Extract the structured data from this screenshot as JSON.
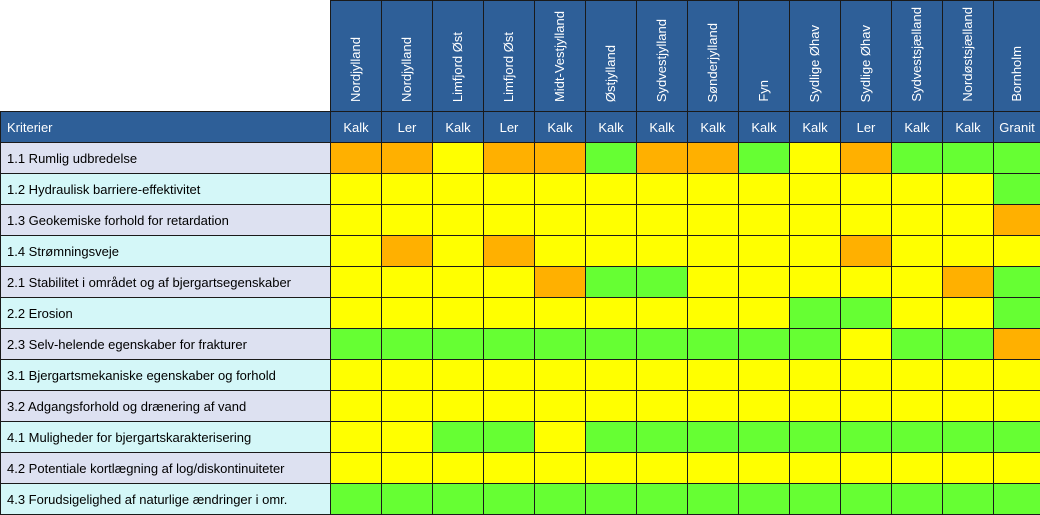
{
  "criteria_header": "Kriterier",
  "colors": {
    "y": "#ffff00",
    "g": "#66ff33",
    "o": "#ffb000"
  },
  "columns": [
    {
      "region": "Nordjylland",
      "rock": "Kalk"
    },
    {
      "region": "Nordjylland",
      "rock": "Ler"
    },
    {
      "region": "Limfjord Øst",
      "rock": "Kalk"
    },
    {
      "region": "Limfjord Øst",
      "rock": "Ler"
    },
    {
      "region": "Midt-Vestjylland",
      "rock": "Kalk"
    },
    {
      "region": "Østjylland",
      "rock": "Kalk"
    },
    {
      "region": "Sydvestjylland",
      "rock": "Kalk"
    },
    {
      "region": "Sønderjylland",
      "rock": "Kalk"
    },
    {
      "region": "Fyn",
      "rock": "Kalk"
    },
    {
      "region": "Sydlige Øhav",
      "rock": "Kalk"
    },
    {
      "region": "Sydlige Øhav",
      "rock": "Ler"
    },
    {
      "region": "Sydvestsjælland",
      "rock": "Kalk"
    },
    {
      "region": "Nordøstsjælland",
      "rock": "Kalk"
    },
    {
      "region": "Bornholm",
      "rock": "Granit"
    }
  ],
  "rows": [
    {
      "label": "1.1 Rumlig udbredelse",
      "cells": [
        "o",
        "o",
        "y",
        "o",
        "o",
        "g",
        "o",
        "o",
        "g",
        "y",
        "o",
        "g",
        "g",
        "g"
      ]
    },
    {
      "label": "1.2 Hydraulisk barriere-effektivitet",
      "cells": [
        "y",
        "y",
        "y",
        "y",
        "y",
        "y",
        "y",
        "y",
        "y",
        "y",
        "y",
        "y",
        "y",
        "g"
      ]
    },
    {
      "label": "1.3 Geokemiske forhold for retardation",
      "cells": [
        "y",
        "y",
        "y",
        "y",
        "y",
        "y",
        "y",
        "y",
        "y",
        "y",
        "y",
        "y",
        "y",
        "o"
      ]
    },
    {
      "label": "1.4 Strømningsveje",
      "cells": [
        "y",
        "o",
        "y",
        "o",
        "y",
        "y",
        "y",
        "y",
        "y",
        "y",
        "o",
        "y",
        "y",
        "y"
      ]
    },
    {
      "label": "2.1 Stabilitet i området og af bjergartsegenskaber",
      "cells": [
        "y",
        "y",
        "y",
        "y",
        "o",
        "g",
        "g",
        "y",
        "y",
        "y",
        "y",
        "y",
        "o",
        "g"
      ]
    },
    {
      "label": "2.2 Erosion",
      "cells": [
        "y",
        "y",
        "y",
        "y",
        "y",
        "y",
        "y",
        "y",
        "y",
        "g",
        "g",
        "y",
        "y",
        "g"
      ]
    },
    {
      "label": "2.3 Selv-helende egenskaber for frakturer",
      "cells": [
        "g",
        "g",
        "g",
        "g",
        "g",
        "g",
        "g",
        "g",
        "g",
        "g",
        "y",
        "g",
        "g",
        "o"
      ]
    },
    {
      "label": "3.1 Bjergartsmekaniske egenskaber og forhold",
      "cells": [
        "y",
        "y",
        "y",
        "y",
        "y",
        "y",
        "y",
        "y",
        "y",
        "y",
        "y",
        "y",
        "y",
        "y"
      ]
    },
    {
      "label": "3.2 Adgangsforhold og drænering af vand",
      "cells": [
        "y",
        "y",
        "y",
        "y",
        "y",
        "y",
        "y",
        "y",
        "y",
        "y",
        "y",
        "y",
        "y",
        "y"
      ]
    },
    {
      "label": "4.1 Muligheder for bjergartskarakterisering",
      "cells": [
        "y",
        "y",
        "g",
        "g",
        "y",
        "g",
        "g",
        "g",
        "g",
        "g",
        "g",
        "g",
        "g",
        "g"
      ]
    },
    {
      "label": "4.2 Potentiale kortlægning af log/diskontinuiteter",
      "cells": [
        "y",
        "y",
        "y",
        "y",
        "y",
        "y",
        "y",
        "y",
        "y",
        "y",
        "y",
        "y",
        "y",
        "y"
      ]
    },
    {
      "label": "4.3 Forudsigelighed af naturlige ændringer i omr.",
      "cells": [
        "g",
        "g",
        "g",
        "g",
        "g",
        "g",
        "g",
        "g",
        "g",
        "g",
        "g",
        "g",
        "g",
        "g"
      ]
    }
  ]
}
